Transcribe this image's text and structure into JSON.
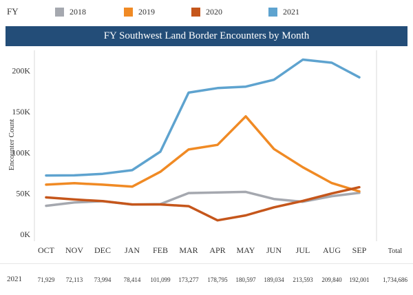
{
  "legend": {
    "fy_label": "FY",
    "items": [
      {
        "label": "2018",
        "color": "#a5a8af"
      },
      {
        "label": "2019",
        "color": "#f08a24"
      },
      {
        "label": "2020",
        "color": "#c5561b"
      },
      {
        "label": "2021",
        "color": "#5ea3cf"
      }
    ]
  },
  "chart_data": {
    "type": "line",
    "title": "FY Southwest Land Border Encounters by Month",
    "ylabel": "Encounter Count",
    "xlabel": "",
    "categories": [
      "OCT",
      "NOV",
      "DEC",
      "JAN",
      "FEB",
      "MAR",
      "APR",
      "MAY",
      "JUN",
      "JUL",
      "AUG",
      "SEP"
    ],
    "total_label": "Total",
    "ylim": [
      0,
      225000
    ],
    "yticks": [
      0,
      50000,
      100000,
      150000,
      200000
    ],
    "ytick_labels": [
      "0K",
      "50K",
      "100K",
      "150K",
      "200K"
    ],
    "grid": false,
    "series": [
      {
        "name": "2018",
        "color": "#a5a8af",
        "values": [
          34900,
          39000,
          40500,
          36500,
          37000,
          50500,
          51200,
          51900,
          43200,
          39900,
          46700,
          50700
        ]
      },
      {
        "name": "2019",
        "color": "#f08a24",
        "values": [
          60800,
          62500,
          60800,
          58300,
          76500,
          103700,
          109400,
          144300,
          104300,
          82000,
          62700,
          52500
        ]
      },
      {
        "name": "2020",
        "color": "#c5561b",
        "values": [
          45200,
          42600,
          40600,
          36600,
          36600,
          34500,
          17100,
          23200,
          33000,
          40900,
          50000,
          57600
        ]
      },
      {
        "name": "2021",
        "color": "#5ea3cf",
        "values": [
          71929,
          72113,
          73994,
          78414,
          101099,
          173277,
          178795,
          180597,
          189034,
          213593,
          209840,
          192001
        ]
      }
    ],
    "table": {
      "row_label": "2021",
      "values": [
        "71,929",
        "72,113",
        "73,994",
        "78,414",
        "101,099",
        "173,277",
        "178,795",
        "180,597",
        "189,034",
        "213,593",
        "209,840",
        "192,001"
      ],
      "total": "1,734,686"
    }
  }
}
